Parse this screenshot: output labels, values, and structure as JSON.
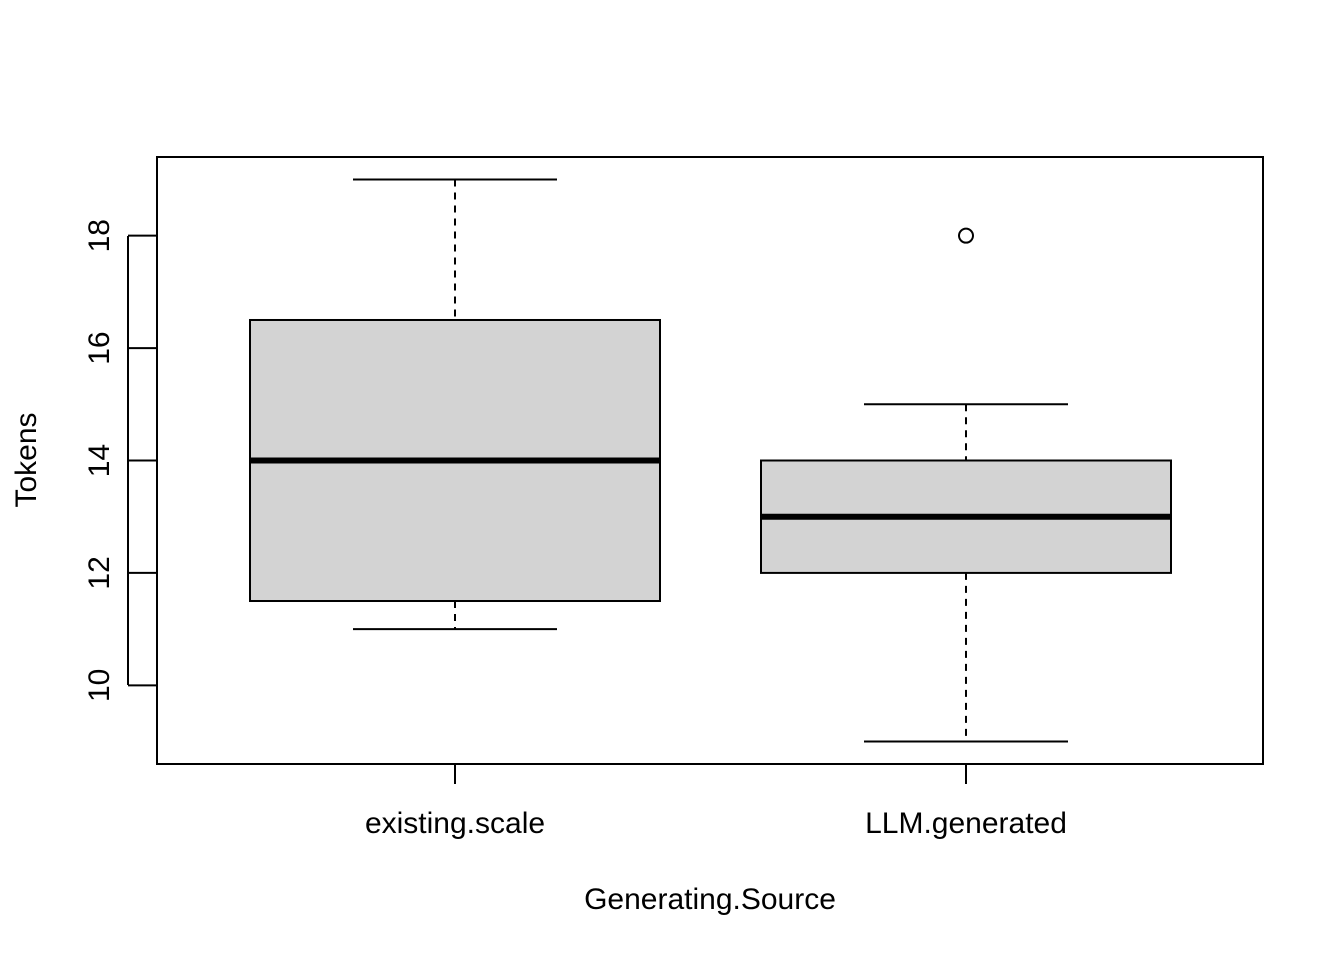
{
  "chart_data": {
    "type": "boxplot",
    "xlabel": "Generating.Source",
    "ylabel": "Tokens",
    "ylim": [
      8.6,
      19.4
    ],
    "yticks": [
      10,
      12,
      14,
      16,
      18
    ],
    "grid": false,
    "box_fill": "#d3d3d3",
    "categories": [
      "existing.scale",
      "LLM.generated"
    ],
    "boxes": [
      {
        "category": "existing.scale",
        "whisker_low": 11,
        "q1": 11.5,
        "median": 14,
        "q3": 16.5,
        "whisker_high": 19,
        "outliers": []
      },
      {
        "category": "LLM.generated",
        "whisker_low": 9,
        "q1": 12,
        "median": 13,
        "q3": 14,
        "whisker_high": 15,
        "outliers": [
          18
        ]
      }
    ]
  }
}
